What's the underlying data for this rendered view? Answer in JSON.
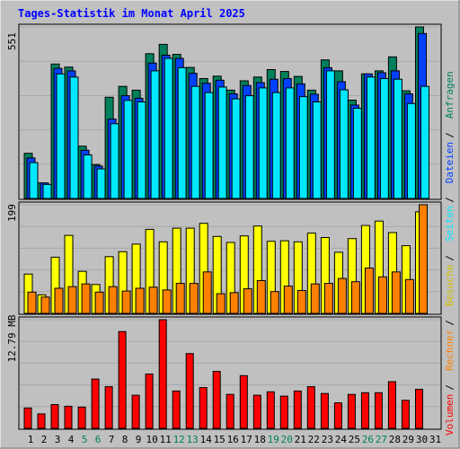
{
  "title": "Tages-Statistik im Monat April 2025",
  "colors": {
    "background": "#c0c0c0",
    "panel": "#c0c0c0",
    "title_text": "#0000ff",
    "grid": "#808080",
    "anfragen": "#00805c",
    "dateien": "#0040ff",
    "seiten": "#00e8ff",
    "besuche": "#ffff00",
    "rechner": "#ff8000",
    "volumen": "#ff0000",
    "weekend_label": "#00805c",
    "weekday_label": "#000000"
  },
  "legend": {
    "top": {
      "items": [
        {
          "text": "Anfragen",
          "color": "#00805c"
        },
        {
          "text": "Dateien",
          "color": "#0040ff"
        },
        {
          "text": "Seiten",
          "color": "#00e8ff"
        },
        {
          "text": "Besuche",
          "color": "#d0c000"
        },
        {
          "text": "Rechner",
          "color": "#ff8000"
        },
        {
          "text": "Volumen",
          "color": "#ff0000"
        }
      ],
      "separator": " / "
    }
  },
  "chart_data": [
    {
      "type": "bar",
      "panel": "requests",
      "ymax_label": "551",
      "ylim": [
        0,
        551
      ],
      "grid": true,
      "categories": [
        "1",
        "2",
        "3",
        "4",
        "5",
        "6",
        "7",
        "8",
        "9",
        "10",
        "11",
        "12",
        "13",
        "14",
        "15",
        "16",
        "17",
        "18",
        "19",
        "20",
        "21",
        "22",
        "23",
        "24",
        "25",
        "26",
        "27",
        "28",
        "29",
        "30",
        "31"
      ],
      "weekend": [
        5,
        6,
        12,
        13,
        19,
        20,
        26,
        27
      ],
      "series": [
        {
          "name": "Anfragen",
          "color": "#00805c",
          "values": [
            145,
            50,
            432,
            422,
            168,
            109,
            325,
            360,
            348,
            465,
            495,
            463,
            421,
            385,
            393,
            348,
            378,
            390,
            414,
            408,
            392,
            348,
            445,
            410,
            316,
            400,
            410,
            455,
            346,
            551,
            0
          ]
        },
        {
          "name": "Dateien",
          "color": "#0040ff",
          "values": [
            130,
            50,
            418,
            410,
            155,
            104,
            255,
            330,
            322,
            435,
            460,
            450,
            402,
            370,
            380,
            336,
            363,
            372,
            383,
            385,
            368,
            335,
            420,
            375,
            300,
            400,
            404,
            410,
            336,
            530,
            0
          ]
        },
        {
          "name": "Seiten",
          "color": "#00e8ff",
          "values": [
            115,
            45,
            400,
            390,
            140,
            95,
            240,
            315,
            310,
            410,
            450,
            420,
            360,
            340,
            358,
            320,
            330,
            355,
            340,
            355,
            327,
            310,
            410,
            349,
            290,
            390,
            385,
            383,
            305,
            360,
            0
          ]
        }
      ]
    },
    {
      "type": "bar",
      "panel": "visits",
      "ymax_label": "199",
      "ylim": [
        0,
        199
      ],
      "grid": true,
      "categories": [
        "1",
        "2",
        "3",
        "4",
        "5",
        "6",
        "7",
        "8",
        "9",
        "10",
        "11",
        "12",
        "13",
        "14",
        "15",
        "16",
        "17",
        "18",
        "19",
        "20",
        "21",
        "22",
        "23",
        "24",
        "25",
        "26",
        "27",
        "28",
        "29",
        "30",
        "31"
      ],
      "series": [
        {
          "name": "Besuche",
          "color": "#ffff00",
          "values": [
            72,
            34,
            103,
            143,
            77,
            53,
            104,
            113,
            127,
            154,
            131,
            156,
            156,
            165,
            141,
            130,
            142,
            160,
            132,
            133,
            131,
            147,
            139,
            112,
            137,
            161,
            169,
            148,
            124,
            186,
            0
          ]
        },
        {
          "name": "Rechner",
          "color": "#ff8000",
          "values": [
            39,
            30,
            46,
            49,
            54,
            39,
            49,
            41,
            46,
            48,
            43,
            55,
            55,
            76,
            36,
            38,
            45,
            60,
            40,
            50,
            42,
            54,
            55,
            64,
            58,
            83,
            67,
            76,
            62,
            199,
            0
          ]
        }
      ]
    },
    {
      "type": "bar",
      "panel": "volume",
      "ymax_label": "12.79 MB",
      "ylim": [
        0,
        12.79
      ],
      "grid": true,
      "categories": [
        "1",
        "2",
        "3",
        "4",
        "5",
        "6",
        "7",
        "8",
        "9",
        "10",
        "11",
        "12",
        "13",
        "14",
        "15",
        "16",
        "17",
        "18",
        "19",
        "20",
        "21",
        "22",
        "23",
        "24",
        "25",
        "26",
        "27",
        "28",
        "29",
        "30",
        "31"
      ],
      "series": [
        {
          "name": "Volumen",
          "color": "#ff0000",
          "values": [
            2.4,
            1.7,
            2.8,
            2.6,
            2.5,
            5.8,
            4.9,
            11.4,
            3.9,
            6.4,
            12.79,
            4.4,
            8.8,
            4.8,
            6.7,
            4.0,
            6.2,
            3.9,
            4.3,
            3.8,
            4.4,
            4.9,
            4.1,
            3.0,
            4.0,
            4.2,
            4.2,
            5.5,
            3.3,
            4.6,
            0
          ]
        }
      ]
    }
  ]
}
